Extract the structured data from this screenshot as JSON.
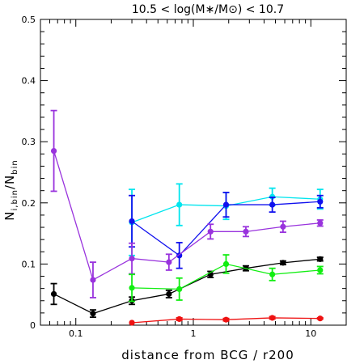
{
  "chart_data": {
    "type": "line",
    "title": "10.5 < log(M∗/M⊙) < 10.7",
    "xlabel": "distance from BCG / r200",
    "ylabel": {
      "main": "N",
      "sub1": "i,bin",
      "slash": "/N",
      "sub2": "bin"
    },
    "x_scale": "log",
    "xlim": [
      0.05,
      20
    ],
    "ylim": [
      0,
      0.5
    ],
    "x_tick_labels": [
      {
        "value": 0.1,
        "label": "0.1"
      },
      {
        "value": 1,
        "label": "1"
      },
      {
        "value": 10,
        "label": "10"
      }
    ],
    "y_tick_labels": [
      {
        "value": 0,
        "label": "0"
      },
      {
        "value": 0.1,
        "label": "0.1"
      },
      {
        "value": 0.2,
        "label": "0.2"
      },
      {
        "value": 0.3,
        "label": "0.3"
      },
      {
        "value": 0.4,
        "label": "0.4"
      },
      {
        "value": 0.5,
        "label": "0.5"
      }
    ],
    "series": [
      {
        "color": "#00e5ee",
        "points": [
          {
            "x": 0.3,
            "y": 0.168,
            "err": 0.054
          },
          {
            "x": 0.76,
            "y": 0.197,
            "err": 0.034
          },
          {
            "x": 1.9,
            "y": 0.195,
            "err": 0.022
          },
          {
            "x": 4.7,
            "y": 0.21,
            "err": 0.014
          },
          {
            "x": 12.0,
            "y": 0.206,
            "err": 0.016
          }
        ]
      },
      {
        "color": "#1010ee",
        "points": [
          {
            "x": 0.3,
            "y": 0.17,
            "err": 0.042
          },
          {
            "x": 0.76,
            "y": 0.114,
            "err": 0.021
          },
          {
            "x": 1.9,
            "y": 0.197,
            "err": 0.02
          },
          {
            "x": 4.7,
            "y": 0.197,
            "err": 0.012
          },
          {
            "x": 12.0,
            "y": 0.202,
            "err": 0.01
          }
        ]
      },
      {
        "color": "#9933dd",
        "points": [
          {
            "x": 0.065,
            "y": 0.285,
            "err": 0.066
          },
          {
            "x": 0.14,
            "y": 0.074,
            "err": 0.029
          },
          {
            "x": 0.3,
            "y": 0.109,
            "err": 0.025
          },
          {
            "x": 0.62,
            "y": 0.103,
            "err": 0.013
          },
          {
            "x": 1.4,
            "y": 0.153,
            "err": 0.012
          },
          {
            "x": 2.8,
            "y": 0.153,
            "err": 0.008
          },
          {
            "x": 5.8,
            "y": 0.161,
            "err": 0.009
          },
          {
            "x": 12.0,
            "y": 0.167,
            "err": 0.005
          }
        ]
      },
      {
        "color": "#000000",
        "points": [
          {
            "x": 0.065,
            "y": 0.051,
            "err": 0.017
          },
          {
            "x": 0.14,
            "y": 0.019,
            "err": 0.006
          },
          {
            "x": 0.3,
            "y": 0.04,
            "err": 0.006
          },
          {
            "x": 0.62,
            "y": 0.051,
            "err": 0.006
          },
          {
            "x": 1.4,
            "y": 0.083,
            "err": 0.005
          },
          {
            "x": 2.8,
            "y": 0.093,
            "err": 0.004
          },
          {
            "x": 5.8,
            "y": 0.102,
            "err": 0.003
          },
          {
            "x": 12.0,
            "y": 0.108,
            "err": 0.003
          }
        ]
      },
      {
        "color": "#11ee11",
        "points": [
          {
            "x": 0.3,
            "y": 0.061,
            "err": 0.022
          },
          {
            "x": 0.76,
            "y": 0.059,
            "err": 0.018
          },
          {
            "x": 1.9,
            "y": 0.1,
            "err": 0.015
          },
          {
            "x": 4.7,
            "y": 0.083,
            "err": 0.01
          },
          {
            "x": 12.0,
            "y": 0.09,
            "err": 0.006
          }
        ]
      },
      {
        "color": "#ee1111",
        "points": [
          {
            "x": 0.3,
            "y": 0.004,
            "err": 0
          },
          {
            "x": 0.76,
            "y": 0.01,
            "err": 0.002
          },
          {
            "x": 1.9,
            "y": 0.009,
            "err": 0.002
          },
          {
            "x": 4.7,
            "y": 0.012,
            "err": 0.002
          },
          {
            "x": 12.0,
            "y": 0.011,
            "err": 0.001
          }
        ]
      }
    ]
  }
}
